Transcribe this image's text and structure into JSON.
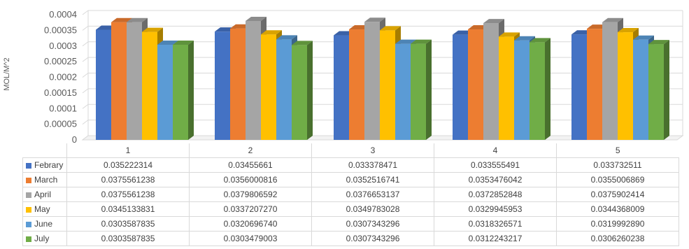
{
  "chart_data": {
    "type": "bar",
    "ylabel": "MOL/M^2",
    "ylim": [
      0,
      0.0004
    ],
    "yticks": [
      "0",
      "0.00005",
      "0.0001",
      "0.00015",
      "0.0002",
      "0.00025",
      "0.0003",
      "0.00035",
      "0.0004"
    ],
    "categories": [
      "1",
      "2",
      "3",
      "4",
      "5"
    ],
    "grid": true,
    "legend": "data-table-left",
    "series": [
      {
        "name": "Febrary",
        "color": "#4472C4",
        "values": [
          0.000352,
          0.000346,
          0.000334,
          0.000336,
          0.000337
        ],
        "labels": [
          "0.035222314",
          "0.03455661",
          "0.033378471",
          "0.033555491",
          "0.033732511"
        ]
      },
      {
        "name": "March",
        "color": "#ED7D31",
        "values": [
          0.000376,
          0.000356,
          0.000353,
          0.000353,
          0.000355
        ],
        "labels": [
          "0.0375561238",
          "0.0356000816",
          "0.0352516741",
          "0.0353476042",
          "0.0355006869"
        ]
      },
      {
        "name": "April",
        "color": "#A5A5A5",
        "values": [
          0.000376,
          0.00038,
          0.000377,
          0.000373,
          0.000376
        ],
        "labels": [
          "0.0375561238",
          "0.0379806592",
          "0.0376653137",
          "0.0372852848",
          "0.0375902414"
        ]
      },
      {
        "name": "May",
        "color": "#FFC000",
        "values": [
          0.000345,
          0.000337,
          0.00035,
          0.00033,
          0.000344
        ],
        "labels": [
          "0.0345133831",
          "0.0337207270",
          "0.0349783028",
          "0.0329945953",
          "0.0344368009"
        ]
      },
      {
        "name": "June",
        "color": "#5B9BD5",
        "values": [
          0.000304,
          0.000321,
          0.000307,
          0.000318,
          0.00032
        ],
        "labels": [
          "0.0303587835",
          "0.0320696740",
          "0.0307343296",
          "0.0318326571",
          "0.0319992890"
        ]
      },
      {
        "name": "July",
        "color": "#70AD47",
        "values": [
          0.000304,
          0.000303,
          0.000307,
          0.000312,
          0.000306
        ],
        "labels": [
          "0.0303587835",
          "0.0303479003",
          "0.0307343296",
          "0.0312243217",
          "0.0306260238"
        ]
      }
    ]
  }
}
